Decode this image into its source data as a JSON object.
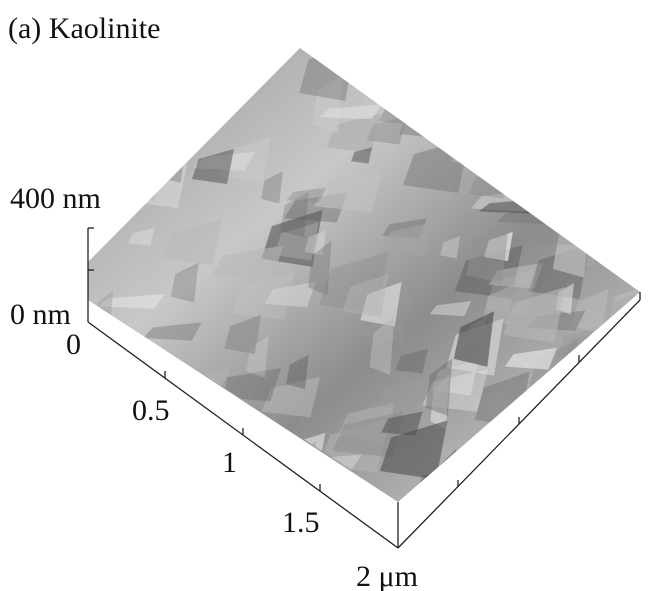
{
  "title": "(a) Kaolinite",
  "z_axis": {
    "labels": [
      "400 nm",
      "0 nm"
    ]
  },
  "x_axis": {
    "labels": [
      "0",
      "0.5",
      "1",
      "1.5",
      "2 μm"
    ]
  }
}
